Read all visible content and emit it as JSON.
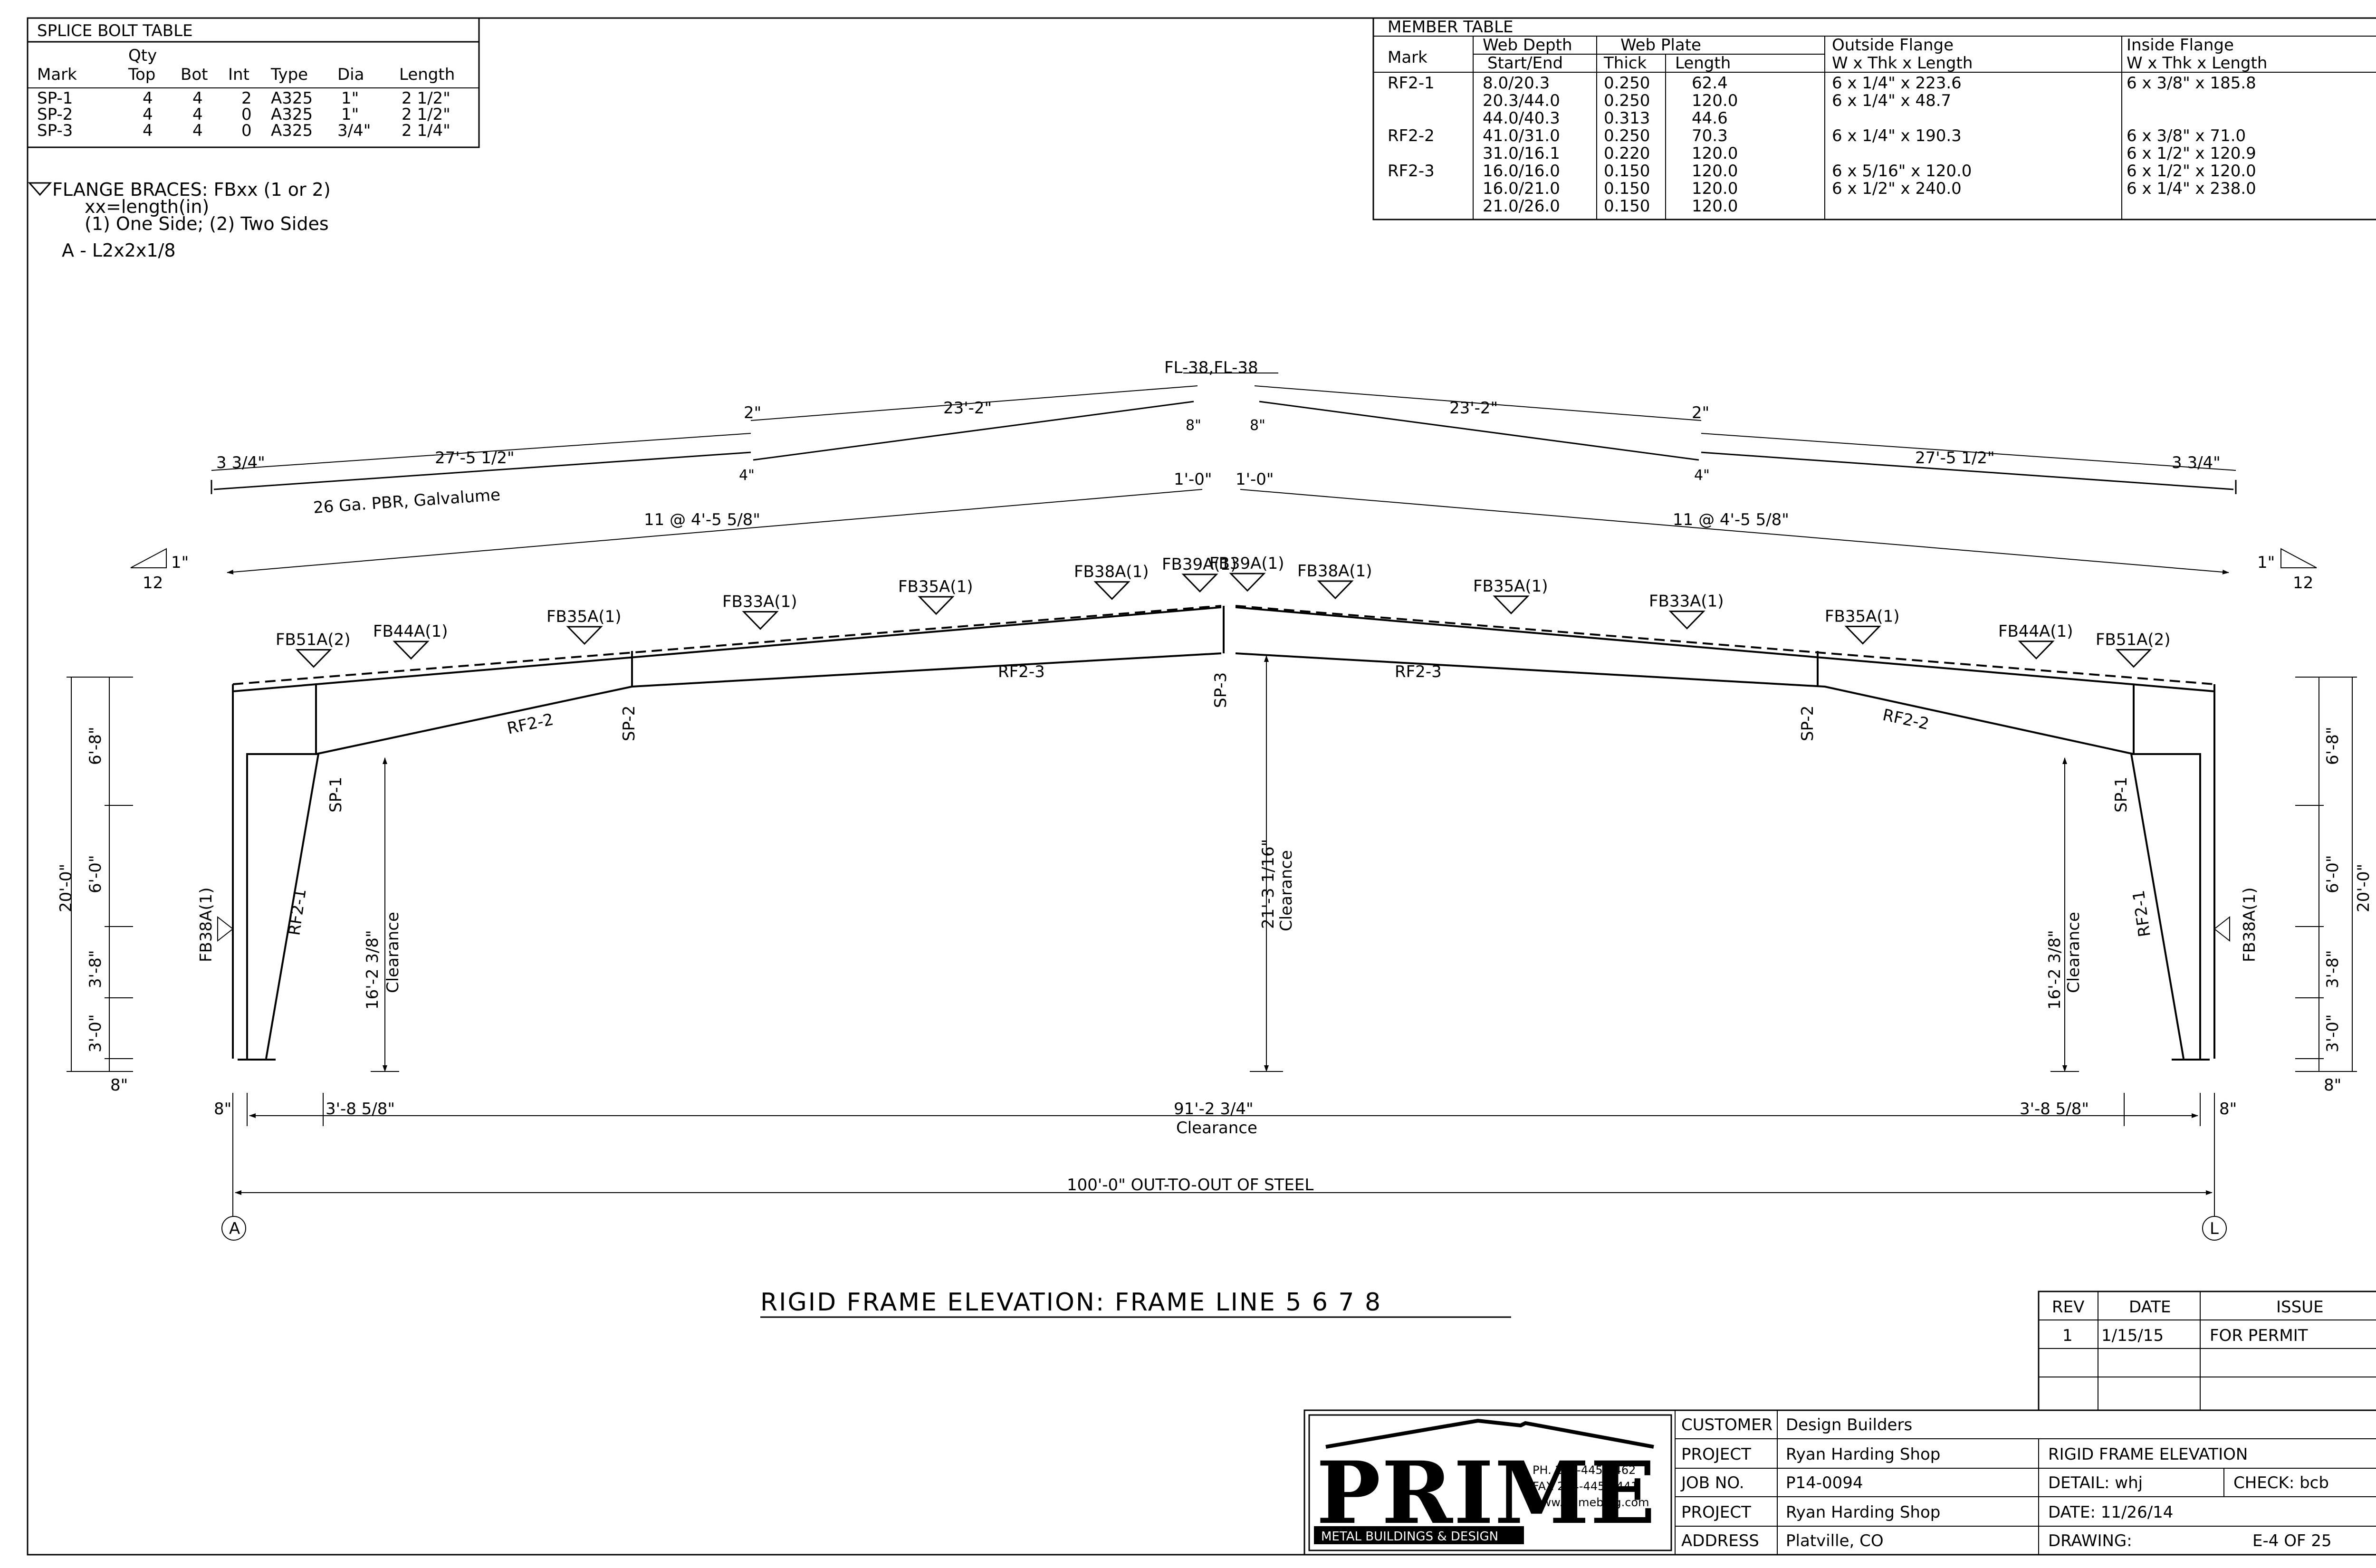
{
  "splice_table": {
    "title": "SPLICE BOLT TABLE",
    "headers": {
      "mark": "Mark",
      "qty": "Qty",
      "top": "Top",
      "bot": "Bot",
      "int": "Int",
      "type": "Type",
      "dia": "Dia",
      "length": "Length"
    },
    "rows": [
      {
        "mark": "SP-1",
        "top": "4",
        "bot": "4",
        "int": "2",
        "type": "A325",
        "dia": "1\"",
        "length": "2 1/2\""
      },
      {
        "mark": "SP-2",
        "top": "4",
        "bot": "4",
        "int": "0",
        "type": "A325",
        "dia": "1\"",
        "length": "2 1/2\""
      },
      {
        "mark": "SP-3",
        "top": "4",
        "bot": "4",
        "int": "0",
        "type": "A325",
        "dia": "3/4\"",
        "length": "2 1/4\""
      }
    ]
  },
  "flange_note": {
    "line1": "FLANGE BRACES: FBxx (1 or 2)",
    "line2": "xx=length(in)",
    "line3": "(1) One Side; (2) Two Sides",
    "line4": "A - L2x2x1/8"
  },
  "member_table": {
    "title": "MEMBER TABLE",
    "headers": {
      "mark": "Mark",
      "web_depth": "Web Depth",
      "start_end": "Start/End",
      "web_plate": "Web Plate",
      "thick": "Thick",
      "length": "Length",
      "outside_flange": "Outside Flange",
      "inside_flange": "Inside Flange",
      "flange_sub": "W x Thk x Length"
    },
    "rows": [
      {
        "mark": "RF2-1",
        "depth": "8.0/20.3",
        "thick": "0.250",
        "length": "62.4",
        "outside": "6 x 1/4\" x 223.6",
        "inside": "6 x 3/8\" x 185.8"
      },
      {
        "mark": "",
        "depth": "20.3/44.0",
        "thick": "0.250",
        "length": "120.0",
        "outside": "6 x 1/4\" x 48.7",
        "inside": ""
      },
      {
        "mark": "",
        "depth": "44.0/40.3",
        "thick": "0.313",
        "length": "44.6",
        "outside": "",
        "inside": ""
      },
      {
        "mark": "RF2-2",
        "depth": "41.0/31.0",
        "thick": "0.250",
        "length": "70.3",
        "outside": "6 x 1/4\" x 190.3",
        "inside": "6 x 3/8\" x 71.0"
      },
      {
        "mark": "",
        "depth": "31.0/16.1",
        "thick": "0.220",
        "length": "120.0",
        "outside": "",
        "inside": "6 x 1/2\" x 120.9"
      },
      {
        "mark": "RF2-3",
        "depth": "16.0/16.0",
        "thick": "0.150",
        "length": "120.0",
        "outside": "6 x 5/16\" x 120.0",
        "inside": "6 x 1/2\" x 120.0"
      },
      {
        "mark": "",
        "depth": "16.0/21.0",
        "thick": "0.150",
        "length": "120.0",
        "outside": "6 x 1/2\" x 240.0",
        "inside": "6 x 1/4\" x 238.0"
      },
      {
        "mark": "",
        "depth": "21.0/26.0",
        "thick": "0.150",
        "length": "120.0",
        "outside": "",
        "inside": ""
      }
    ]
  },
  "drawing": {
    "roof_dims": {
      "eave_overhang_l": "3 3/4\"",
      "eave_overhang_r": "3 3/4\"",
      "panel_l1": "27'-5 1/2\"",
      "panel_r1": "27'-5 1/2\"",
      "panel_l2": "23'-2\"",
      "panel_r2": "23'-2\"",
      "lap_l": "2\"",
      "lap_r": "2\"",
      "lap4_l": "4\"",
      "lap4_r": "4\"",
      "ridge_8_l": "8\"",
      "ridge_8_r": "8\"",
      "ridge_note": "FL-38,FL-38",
      "roof_note": "26 Ga. PBR, Galvalume",
      "purlin_l": "11 @ 4'-5 5/8\"",
      "purlin_r": "11 @ 4'-5 5/8\"",
      "ridge_1ft_l": "1'-0\"",
      "ridge_1ft_r": "1'-0\""
    },
    "slope": {
      "rise": "1\"",
      "run": "12"
    },
    "braces": [
      "FB51A(2)",
      "FB44A(1)",
      "FB35A(1)",
      "FB33A(1)",
      "FB35A(1)",
      "FB38A(1)",
      "FB39A(1)",
      "FB39A(1)",
      "FB38A(1)",
      "FB35A(1)",
      "FB33A(1)",
      "FB35A(1)",
      "FB44A(1)",
      "FB51A(2)"
    ],
    "col_brace_l": "FB38A(1)",
    "col_brace_r": "FB38A(1)",
    "members": {
      "rf21": "RF2-1",
      "rf22": "RF2-2",
      "rf23": "RF2-3",
      "sp1": "SP-1",
      "sp2": "SP-2",
      "sp3": "SP-3"
    },
    "vert_dims": {
      "total": "20'-0\"",
      "d1": "6'-8\"",
      "d2": "6'-0\"",
      "d3": "3'-8\"",
      "d4": "3'-0\"",
      "base": "8\""
    },
    "clearance": {
      "side_height": "16'-2 3/8\"",
      "center_height": "21'-3 1/16\"",
      "word": "Clearance",
      "width": "91'-2 3/4\"",
      "side_w": "3'-8 5/8\"",
      "base_off": "8\""
    },
    "overall": "100'-0\" OUT-TO-OUT OF STEEL",
    "grid_a": "A",
    "grid_l": "L",
    "title": "RIGID FRAME ELEVATION: FRAME LINE 5    6    7    8"
  },
  "revision": {
    "headers": {
      "rev": "REV",
      "date": "DATE",
      "issue": "ISSUE"
    },
    "row": {
      "rev": "1",
      "date": "1/15/15",
      "issue": "FOR PERMIT"
    }
  },
  "title_block": {
    "logo": "PRIME",
    "logo_sub": "METAL BUILDINGS & DESIGN",
    "phone": "PH. 254-445-4462",
    "fax": "FAX 254-445-4441",
    "web": "www.primebldg.com",
    "customer_label": "CUSTOMER",
    "customer": "Design Builders",
    "project_label": "PROJECT",
    "project": "Ryan Harding Shop",
    "job_label": "JOB NO.",
    "job": "P14-0094",
    "project2_label": "PROJECT",
    "project2": "Ryan Harding Shop",
    "address_label": "ADDRESS",
    "address": "Platville, CO",
    "drawing_title": "RIGID FRAME ELEVATION",
    "detail": "DETAIL: whj",
    "check": "CHECK:   bcb",
    "date": "DATE: 11/26/14",
    "drawing_label": "DRAWING:",
    "drawing_no": "E-4 OF 25"
  }
}
